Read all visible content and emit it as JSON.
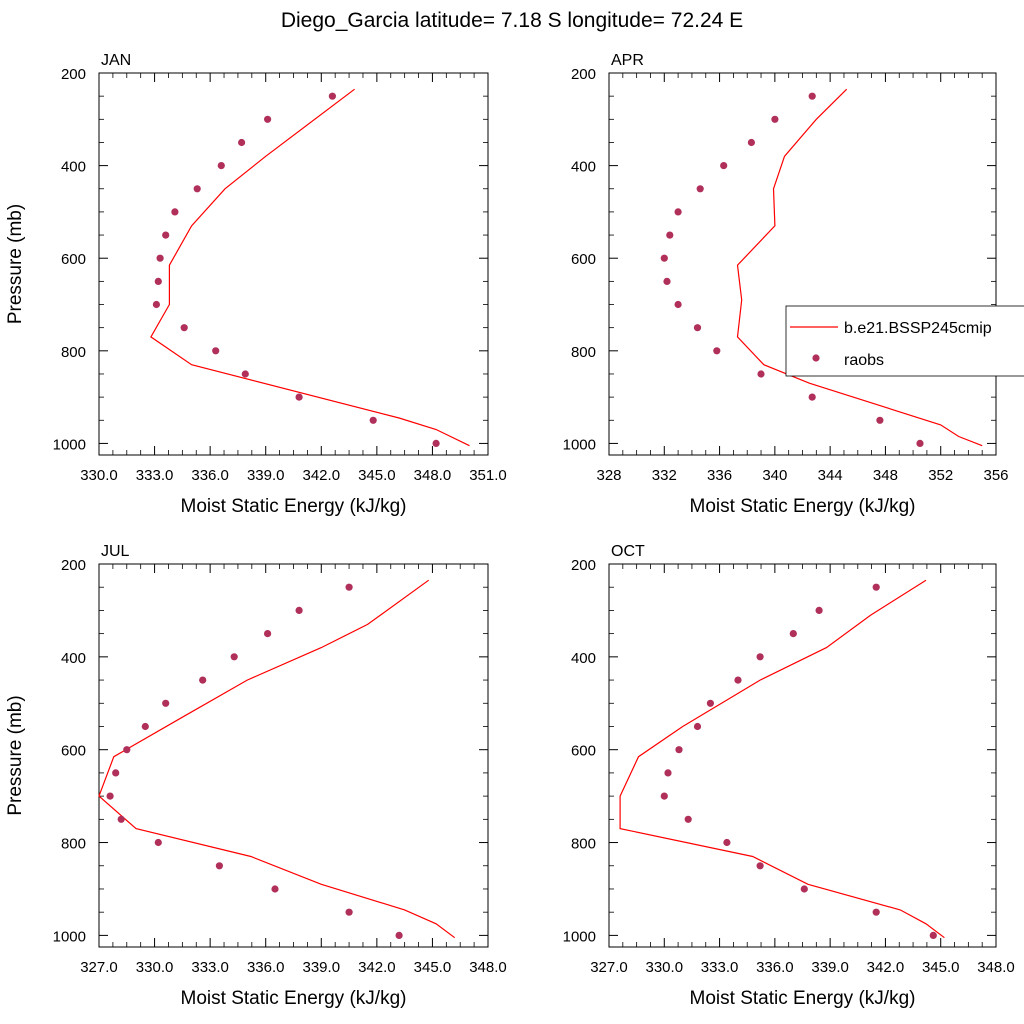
{
  "title": "Diego_Garcia  latitude= 7.18 S longitude= 72.24 E",
  "colors": {
    "model_line": "#ff0000",
    "obs_marker": "#b0305a",
    "axes": "#000000"
  },
  "legend": {
    "placement": "right",
    "entries": [
      {
        "label": "b.e21.BSSP245cmip",
        "style": "line"
      },
      {
        "label": "raobs",
        "style": "marker"
      }
    ]
  },
  "chart_data": [
    {
      "type": "line",
      "panel_label": "JAN",
      "xlabel": "Moist Static Energy (kJ/kg)",
      "ylabel": "Pressure (mb)",
      "xlim": [
        330,
        351
      ],
      "ylim": [
        1025,
        200
      ],
      "y_inverted": true,
      "xticks": [
        "330.0",
        "333.0",
        "336.0",
        "339.0",
        "342.0",
        "345.0",
        "348.0",
        "351.0"
      ],
      "yticks": [
        "200",
        "400",
        "600",
        "800",
        "1000"
      ],
      "grid": false,
      "series": [
        {
          "name": "b.e21.BSSP245cmip",
          "style": "line",
          "points": [
            [
              350.0,
              1005
            ],
            [
              348.2,
              970
            ],
            [
              346.2,
              945
            ],
            [
              335.0,
              830
            ],
            [
              332.8,
              770
            ],
            [
              333.8,
              700
            ],
            [
              333.8,
              615
            ],
            [
              335.0,
              530
            ],
            [
              336.8,
              450
            ],
            [
              339.0,
              380
            ],
            [
              343.8,
              235
            ]
          ]
        },
        {
          "name": "raobs",
          "style": "marker",
          "points": [
            [
              348.2,
              1000
            ],
            [
              344.8,
              950
            ],
            [
              340.8,
              900
            ],
            [
              337.9,
              850
            ],
            [
              336.3,
              800
            ],
            [
              334.6,
              750
            ],
            [
              333.1,
              700
            ],
            [
              333.2,
              650
            ],
            [
              333.3,
              600
            ],
            [
              333.6,
              550
            ],
            [
              334.1,
              500
            ],
            [
              335.3,
              450
            ],
            [
              336.6,
              400
            ],
            [
              337.7,
              350
            ],
            [
              339.1,
              300
            ],
            [
              342.6,
              250
            ]
          ]
        }
      ]
    },
    {
      "type": "line",
      "panel_label": "APR",
      "xlabel": "Moist Static Energy (kJ/kg)",
      "ylabel": "",
      "xlim": [
        328,
        356
      ],
      "ylim": [
        1025,
        200
      ],
      "y_inverted": true,
      "xticks": [
        "328",
        "332",
        "336",
        "340",
        "344",
        "348",
        "352",
        "356"
      ],
      "yticks": [
        "200",
        "400",
        "600",
        "800",
        "1000"
      ],
      "grid": false,
      "series": [
        {
          "name": "b.e21.BSSP245cmip",
          "style": "line",
          "points": [
            [
              355.0,
              1005
            ],
            [
              353.3,
              985
            ],
            [
              352.0,
              960
            ],
            [
              342.5,
              870
            ],
            [
              339.2,
              830
            ],
            [
              337.3,
              770
            ],
            [
              337.6,
              690
            ],
            [
              337.3,
              615
            ],
            [
              340.0,
              530
            ],
            [
              339.9,
              450
            ],
            [
              340.7,
              380
            ],
            [
              343.0,
              300
            ],
            [
              345.2,
              235
            ]
          ]
        },
        {
          "name": "raobs",
          "style": "marker",
          "points": [
            [
              350.5,
              1000
            ],
            [
              347.6,
              950
            ],
            [
              342.7,
              900
            ],
            [
              339.0,
              850
            ],
            [
              335.8,
              800
            ],
            [
              334.4,
              750
            ],
            [
              333.0,
              700
            ],
            [
              332.2,
              650
            ],
            [
              332.0,
              600
            ],
            [
              332.4,
              550
            ],
            [
              333.0,
              500
            ],
            [
              334.6,
              450
            ],
            [
              336.3,
              400
            ],
            [
              338.3,
              350
            ],
            [
              340.0,
              300
            ],
            [
              342.7,
              250
            ]
          ]
        }
      ]
    },
    {
      "type": "line",
      "panel_label": "JUL",
      "xlabel": "Moist Static Energy (kJ/kg)",
      "ylabel": "Pressure (mb)",
      "xlim": [
        327,
        348
      ],
      "ylim": [
        1025,
        200
      ],
      "y_inverted": true,
      "xticks": [
        "327.0",
        "330.0",
        "333.0",
        "336.0",
        "339.0",
        "342.0",
        "345.0",
        "348.0"
      ],
      "yticks": [
        "200",
        "400",
        "600",
        "800",
        "1000"
      ],
      "grid": false,
      "series": [
        {
          "name": "b.e21.BSSP245cmip",
          "style": "line",
          "points": [
            [
              346.2,
              1005
            ],
            [
              345.2,
              975
            ],
            [
              343.5,
              945
            ],
            [
              339.0,
              890
            ],
            [
              335.2,
              830
            ],
            [
              329.0,
              770
            ],
            [
              327.0,
              700
            ],
            [
              327.8,
              615
            ],
            [
              331.5,
              530
            ],
            [
              335.0,
              450
            ],
            [
              339.0,
              380
            ],
            [
              341.5,
              330
            ],
            [
              344.8,
              235
            ]
          ]
        },
        {
          "name": "raobs",
          "style": "marker",
          "points": [
            [
              343.2,
              1000
            ],
            [
              340.5,
              950
            ],
            [
              336.5,
              900
            ],
            [
              333.5,
              850
            ],
            [
              330.2,
              800
            ],
            [
              328.2,
              750
            ],
            [
              327.6,
              700
            ],
            [
              327.9,
              650
            ],
            [
              328.5,
              600
            ],
            [
              329.5,
              550
            ],
            [
              330.6,
              500
            ],
            [
              332.6,
              450
            ],
            [
              334.3,
              400
            ],
            [
              336.1,
              350
            ],
            [
              337.8,
              300
            ],
            [
              340.5,
              250
            ]
          ]
        }
      ]
    },
    {
      "type": "line",
      "panel_label": "OCT",
      "xlabel": "Moist Static Energy (kJ/kg)",
      "ylabel": "",
      "xlim": [
        327,
        348
      ],
      "ylim": [
        1025,
        200
      ],
      "y_inverted": true,
      "xticks": [
        "327.0",
        "330.0",
        "333.0",
        "336.0",
        "339.0",
        "342.0",
        "345.0",
        "348.0"
      ],
      "yticks": [
        "200",
        "400",
        "600",
        "800",
        "1000"
      ],
      "grid": false,
      "series": [
        {
          "name": "b.e21.BSSP245cmip",
          "style": "line",
          "points": [
            [
              345.2,
              1005
            ],
            [
              344.2,
              975
            ],
            [
              342.8,
              945
            ],
            [
              337.8,
              890
            ],
            [
              334.8,
              830
            ],
            [
              327.6,
              770
            ],
            [
              327.6,
              700
            ],
            [
              328.6,
              615
            ],
            [
              331.0,
              550
            ],
            [
              335.2,
              450
            ],
            [
              338.8,
              380
            ],
            [
              341.2,
              310
            ],
            [
              344.2,
              235
            ]
          ]
        },
        {
          "name": "raobs",
          "style": "marker",
          "points": [
            [
              344.6,
              1000
            ],
            [
              341.5,
              950
            ],
            [
              337.6,
              900
            ],
            [
              335.2,
              850
            ],
            [
              333.4,
              800
            ],
            [
              331.3,
              750
            ],
            [
              330.0,
              700
            ],
            [
              330.2,
              650
            ],
            [
              330.8,
              600
            ],
            [
              331.8,
              550
            ],
            [
              332.5,
              500
            ],
            [
              334.0,
              450
            ],
            [
              335.2,
              400
            ],
            [
              337.0,
              350
            ],
            [
              338.4,
              300
            ],
            [
              341.5,
              250
            ]
          ]
        }
      ]
    }
  ]
}
